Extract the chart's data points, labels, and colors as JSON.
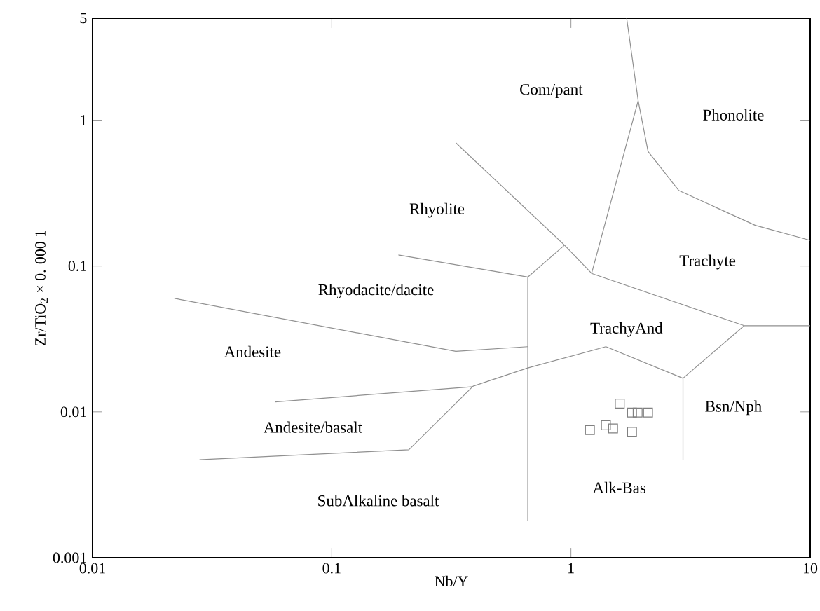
{
  "chart_data": {
    "type": "scatter",
    "xlabel": "Nb/Y",
    "ylabel": "Zr/TiO$_{2}$ × 0. 000 1",
    "log": "xy",
    "xlim": [
      0.01,
      10
    ],
    "ylim": [
      0.001,
      5
    ],
    "xticks": [
      0.01,
      0.1,
      1,
      10
    ],
    "yticks": [
      0.001,
      0.01,
      0.1,
      1,
      5
    ],
    "series": [
      {
        "marker": "square",
        "color": "#808080",
        "x": [
          1.2,
          1.4,
          1.5,
          1.8,
          1.6,
          1.8,
          1.9,
          2.1
        ],
        "values": [
          0.0075,
          0.0081,
          0.0077,
          0.0073,
          0.0114,
          0.0099,
          0.0099,
          0.0099
        ]
      },
      {
        "type": "line",
        "color": "#909090",
        "x": [
          1.71,
          1.91,
          2.1,
          2.82,
          5.9,
          10
        ],
        "values": [
          5,
          1.36,
          0.61,
          0.33,
          0.19,
          0.15
        ]
      },
      {
        "type": "line",
        "color": "#909090",
        "x": [
          1.91,
          1.22,
          5.3,
          10
        ],
        "values": [
          1.36,
          0.089,
          0.039,
          0.039
        ]
      },
      {
        "type": "line",
        "color": "#909090",
        "x": [
          5.3,
          2.94,
          1.4,
          0.66,
          0.39,
          0.21,
          0.028
        ],
        "values": [
          0.039,
          0.017,
          0.028,
          0.02,
          0.015,
          0.0055,
          0.0047
        ]
      },
      {
        "type": "line",
        "color": "#909090",
        "x": [
          2.94,
          2.94
        ],
        "values": [
          0.017,
          0.0047
        ]
      },
      {
        "type": "line",
        "color": "#909090",
        "x": [
          0.058,
          0.39
        ],
        "values": [
          0.0117,
          0.0149
        ]
      },
      {
        "type": "line",
        "color": "#909090",
        "x": [
          0.022,
          0.33,
          0.66
        ],
        "values": [
          0.06,
          0.026,
          0.028
        ]
      },
      {
        "type": "line",
        "color": "#909090",
        "x": [
          0.66,
          0.66
        ],
        "values": [
          0.084,
          0.0018
        ]
      },
      {
        "type": "line",
        "color": "#909090",
        "x": [
          0.19,
          0.66,
          0.94
        ],
        "values": [
          0.119,
          0.084,
          0.139
        ]
      },
      {
        "type": "line",
        "color": "#909090",
        "x": [
          0.33,
          0.94,
          1.22
        ],
        "values": [
          0.7,
          0.139,
          0.089
        ]
      }
    ],
    "annotations": [
      "Com/pant",
      "Phonolite",
      "Rhyolite",
      "Trachyte",
      "Rhyodacite/dacite",
      "Andesite",
      "TrachyAnd",
      "Andesite/basalt",
      "Bsn/Nph",
      "SubAlkaline basalt",
      "Alk-Bas"
    ]
  }
}
